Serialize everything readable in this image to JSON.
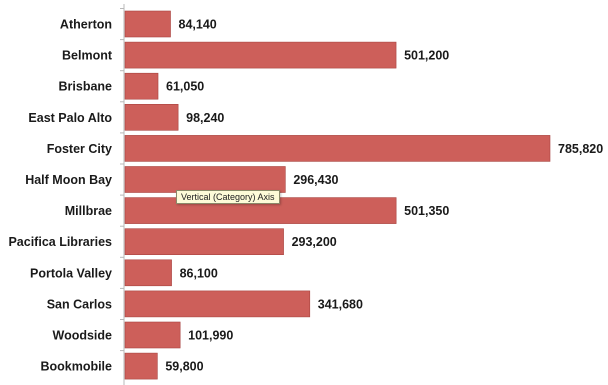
{
  "chart_data": {
    "type": "bar",
    "orientation": "horizontal",
    "categories": [
      "Atherton",
      "Belmont",
      "Brisbane",
      "East Palo Alto",
      "Foster City",
      "Half Moon Bay",
      "Millbrae",
      "Pacifica Libraries",
      "Portola Valley",
      "San Carlos",
      "Woodside",
      "Bookmobile"
    ],
    "values": [
      84140,
      501200,
      61050,
      98240,
      785820,
      296430,
      501350,
      293200,
      86100,
      341680,
      101990,
      59800
    ],
    "value_labels": [
      "84,140",
      "501,200",
      "61,050",
      "98,240",
      "785,820",
      "296,430",
      "501,350",
      "293,200",
      "86,100",
      "341,680",
      "101,990",
      "59,800"
    ],
    "bar_color": "#cd5f5a",
    "bar_edge_color": "#a84440",
    "grid": false,
    "legend": "none"
  },
  "tooltip": {
    "text": "Vertical (Category) Axis"
  }
}
